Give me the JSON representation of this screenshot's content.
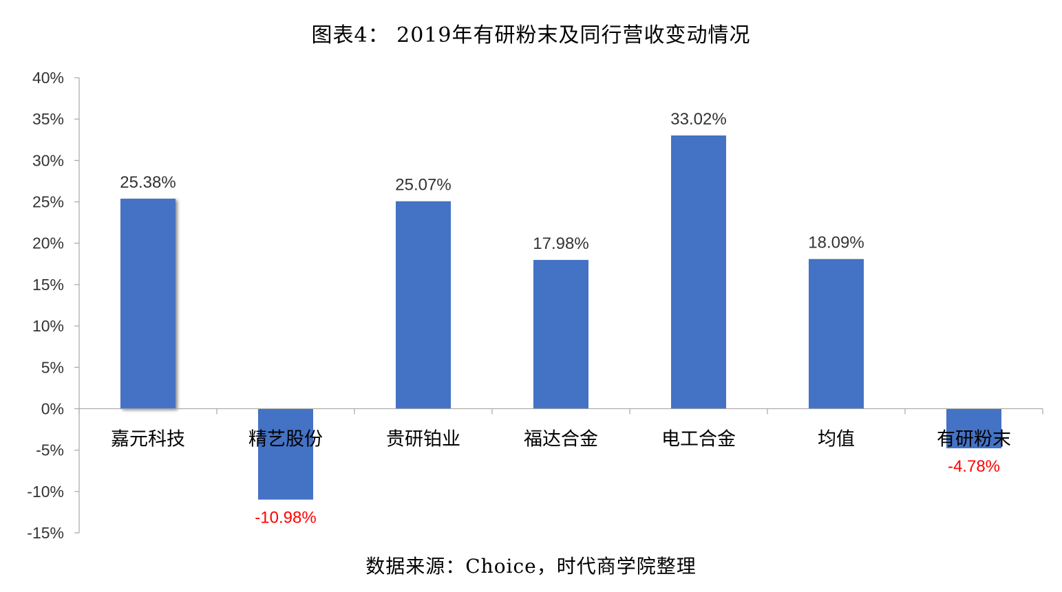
{
  "chart_data": {
    "type": "bar",
    "title": "图表4： 2019年有研粉末及同行营收变动情况",
    "source": "数据来源：Choice，时代商学院整理",
    "categories": [
      "嘉元科技",
      "精艺股份",
      "贵研铂业",
      "福达合金",
      "电工合金",
      "均值",
      "有研粉末"
    ],
    "series": [
      {
        "values": [
          25.38,
          -10.98,
          25.07,
          17.98,
          33.02,
          18.09,
          -4.78
        ],
        "labels": [
          "25.38%",
          "-10.98%",
          "25.07%",
          "17.98%",
          "33.02%",
          "18.09%",
          "-4.78%"
        ]
      }
    ],
    "y_ticks": [
      "40%",
      "35%",
      "30%",
      "25%",
      "20%",
      "15%",
      "10%",
      "5%",
      "0%",
      "-5%",
      "-10%",
      "-15%"
    ],
    "ylim": [
      -15,
      40
    ],
    "y_step": 5,
    "grid": false,
    "legend": "none",
    "bar_color": "#4472C4",
    "positive_label_color": "#333333",
    "negative_label_color": "#FF0000",
    "axis_color": "#A6A6A6"
  }
}
